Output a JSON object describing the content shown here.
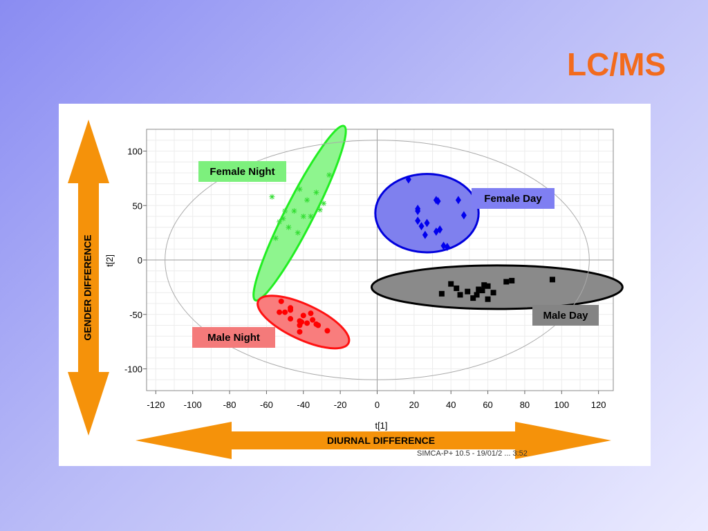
{
  "slide": {
    "title": "LC/MS"
  },
  "annotations": {
    "gender_arrow_label": "GENDER DIFFERENCE",
    "diurnal_arrow_label": "DIURNAL DIFFERENCE",
    "footer": "SIMCA-P+ 10.5 - 19/01/2 ... 3:52",
    "arrow_color": "#f5920a"
  },
  "chart_data": {
    "type": "scatter",
    "xlabel": "t[1]",
    "ylabel": "t[2]",
    "xlim": [
      -125,
      128
    ],
    "ylim": [
      -120,
      120
    ],
    "xticks": [
      -120,
      -100,
      -80,
      -60,
      -40,
      -20,
      0,
      20,
      40,
      60,
      80,
      100,
      120
    ],
    "yticks": [
      -100,
      -50,
      0,
      50,
      100
    ],
    "grid": true,
    "series": [
      {
        "name": "Female Night",
        "marker": "star",
        "color": "#33dd33",
        "box_color": "#7df07d",
        "points": [
          [
            -57,
            58
          ],
          [
            -53,
            35
          ],
          [
            -50,
            45
          ],
          [
            -48,
            30
          ],
          [
            -45,
            45
          ],
          [
            -43,
            25
          ],
          [
            -40,
            40
          ],
          [
            -38,
            55
          ],
          [
            -36,
            40
          ],
          [
            -33,
            62
          ],
          [
            -31,
            46
          ],
          [
            -29,
            52
          ],
          [
            -26,
            78
          ],
          [
            -42,
            65
          ],
          [
            -55,
            20
          ],
          [
            -51,
            38
          ]
        ]
      },
      {
        "name": "Female Day",
        "marker": "diamond",
        "color": "#0000ee",
        "box_color": "#7f7ff2",
        "points": [
          [
            17,
            74
          ],
          [
            22,
            47
          ],
          [
            22,
            45
          ],
          [
            22,
            36
          ],
          [
            24,
            31
          ],
          [
            27,
            34
          ],
          [
            26,
            23
          ],
          [
            32,
            55
          ],
          [
            33,
            54
          ],
          [
            32,
            26
          ],
          [
            34,
            28
          ],
          [
            36,
            13
          ],
          [
            38,
            12
          ],
          [
            44,
            55
          ],
          [
            47,
            41
          ]
        ]
      },
      {
        "name": "Male Night",
        "marker": "circle",
        "color": "#ff0000",
        "box_color": "#f47a7a",
        "points": [
          [
            -52,
            -38
          ],
          [
            -53,
            -48
          ],
          [
            -50,
            -48
          ],
          [
            -47,
            -44
          ],
          [
            -47,
            -46
          ],
          [
            -47,
            -54
          ],
          [
            -42,
            -56
          ],
          [
            -42,
            -60
          ],
          [
            -41,
            -57
          ],
          [
            -40,
            -51
          ],
          [
            -38,
            -58
          ],
          [
            -36,
            -49
          ],
          [
            -35,
            -55
          ],
          [
            -33,
            -59
          ],
          [
            -32,
            -60
          ],
          [
            -27,
            -65
          ],
          [
            -42,
            -66
          ]
        ]
      },
      {
        "name": "Male Day",
        "marker": "square",
        "color": "#000000",
        "box_color": "#848484",
        "points": [
          [
            35,
            -31
          ],
          [
            40,
            -22
          ],
          [
            43,
            -26
          ],
          [
            45,
            -32
          ],
          [
            49,
            -29
          ],
          [
            52,
            -35
          ],
          [
            54,
            -32
          ],
          [
            55,
            -27
          ],
          [
            57,
            -28
          ],
          [
            58,
            -23
          ],
          [
            60,
            -36
          ],
          [
            60,
            -24
          ],
          [
            63,
            -30
          ],
          [
            70,
            -20
          ],
          [
            73,
            -19
          ],
          [
            95,
            -18
          ]
        ]
      }
    ],
    "ellipses": [
      {
        "group": "Female Night",
        "cx": -42,
        "cy": 43,
        "rx": 53,
        "ry": 13,
        "angle_deg": 63,
        "fill": "#8ef58e",
        "stroke": "#22ee22"
      },
      {
        "group": "Female Day",
        "cx": 27,
        "cy": 43,
        "rx": 28,
        "ry": 36,
        "angle_deg": 0,
        "fill": "#7f80ee",
        "stroke": "#0000dd"
      },
      {
        "group": "Male Night",
        "cx": -40,
        "cy": -57,
        "rx": 27,
        "ry": 16,
        "angle_deg": -25,
        "fill": "#f97d7d",
        "stroke": "#ff1111"
      },
      {
        "group": "Male Day",
        "cx": 65,
        "cy": -25,
        "rx": 68,
        "ry": 20,
        "angle_deg": 0,
        "fill": "#8a8a8a",
        "stroke": "#000000"
      },
      {
        "group": "hotelling",
        "cx": 0,
        "cy": 0,
        "rx": 115,
        "ry": 110,
        "angle_deg": 0,
        "fill": "none",
        "stroke": "#aaaaaa"
      }
    ]
  }
}
